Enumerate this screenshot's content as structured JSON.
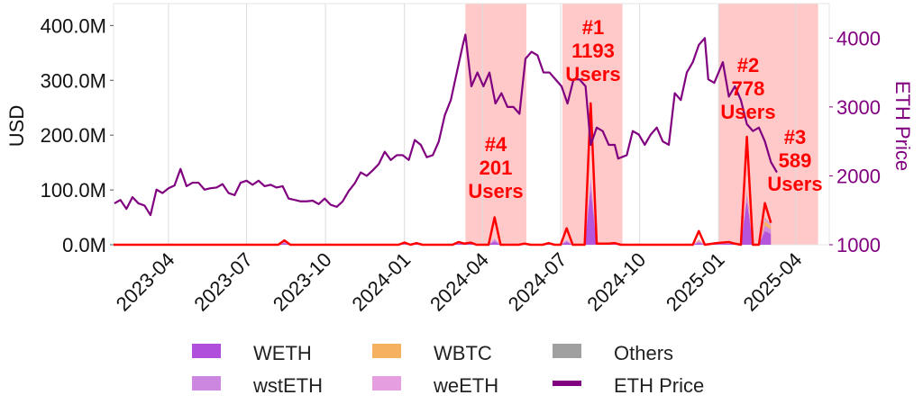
{
  "chart_data": {
    "type": "area",
    "ylabel": "USD",
    "ylabel_right": "ETH Price",
    "ylim": [
      0,
      440000000
    ],
    "ylim_right": [
      1000,
      4500
    ],
    "xlim": [
      "2023-01-27",
      "2025-05-10"
    ],
    "yticks": [
      0,
      100000000,
      200000000,
      300000000,
      400000000
    ],
    "ytick_labels": [
      "0.0M",
      "100.0M",
      "200.0M",
      "300.0M",
      "400.0M"
    ],
    "yticks_right": [
      1000,
      2000,
      3000,
      4000
    ],
    "ytick_labels_right": [
      "1000",
      "2000",
      "3000",
      "4000"
    ],
    "xticks": [
      "2023-04-01",
      "2023-07-01",
      "2023-10-01",
      "2024-01-01",
      "2024-04-01",
      "2024-07-01",
      "2024-10-01",
      "2025-01-01",
      "2025-04-01"
    ],
    "xtick_labels": [
      "2023-04",
      "2023-07",
      "2023-10",
      "2024-01",
      "2024-04",
      "2024-07",
      "2024-10",
      "2025-01",
      "2025-04"
    ],
    "grid": "vertical",
    "legend_placement": "bottom",
    "legend": [
      {
        "name": "WETH",
        "color": "#b04fdc",
        "kind": "area"
      },
      {
        "name": "wstETH",
        "color": "#cc88e0",
        "kind": "area"
      },
      {
        "name": "WBTC",
        "color": "#f5b060",
        "kind": "area"
      },
      {
        "name": "weETH",
        "color": "#e59ee0",
        "kind": "area"
      },
      {
        "name": "Others",
        "color": "#a0a0a0",
        "kind": "area"
      },
      {
        "name": "ETH Price",
        "color": "#800080",
        "kind": "line"
      }
    ],
    "highlight_color": "#ffc9c9",
    "total_line_color": "#ff0000",
    "highlight_spans": [
      {
        "start": "2024-03-12",
        "end": "2024-05-22"
      },
      {
        "start": "2024-07-03",
        "end": "2024-09-11"
      },
      {
        "start": "2025-01-01",
        "end": "2025-04-27"
      }
    ],
    "annotations": [
      {
        "rank": "#1",
        "count": "1193",
        "unit": "Users",
        "date": "2024-08-05"
      },
      {
        "rank": "#2",
        "count": "778",
        "unit": "Users",
        "date": "2025-02-03"
      },
      {
        "rank": "#3",
        "count": "589",
        "unit": "Users",
        "date": "2025-03-10"
      },
      {
        "rank": "#4",
        "count": "201",
        "unit": "Users",
        "date": "2024-04-15"
      }
    ],
    "volume_dates": [
      "2023-01-30",
      "2023-08-07",
      "2023-08-14",
      "2023-08-21",
      "2023-12-25",
      "2024-01-01",
      "2024-01-08",
      "2024-01-15",
      "2024-01-22",
      "2024-02-26",
      "2024-03-04",
      "2024-03-11",
      "2024-03-18",
      "2024-03-25",
      "2024-04-08",
      "2024-04-15",
      "2024-04-22",
      "2024-05-13",
      "2024-05-20",
      "2024-05-27",
      "2024-06-10",
      "2024-06-17",
      "2024-06-24",
      "2024-07-01",
      "2024-07-08",
      "2024-07-15",
      "2024-07-29",
      "2024-08-05",
      "2024-08-12",
      "2024-08-26",
      "2024-09-02",
      "2024-09-09",
      "2024-12-02",
      "2024-12-09",
      "2024-12-16",
      "2024-12-30",
      "2025-01-13",
      "2025-01-20",
      "2025-01-27",
      "2025-02-03",
      "2025-02-10",
      "2025-02-17",
      "2025-02-24",
      "2025-03-03"
    ],
    "total_line": [
      0,
      0,
      8,
      0,
      0,
      4,
      0,
      3,
      0,
      0,
      5,
      2,
      4,
      0,
      0,
      50,
      0,
      0,
      2,
      0,
      0,
      3,
      0,
      0,
      30,
      0,
      0,
      258,
      2,
      2,
      3,
      0,
      0,
      25,
      0,
      3,
      5,
      2,
      0,
      197,
      0,
      0,
      76,
      40
    ],
    "series": [
      {
        "name": "WETH",
        "values": [
          0,
          0,
          3,
          0,
          0,
          1,
          0,
          1,
          0,
          0,
          2,
          1,
          2,
          0,
          0,
          6,
          0,
          0,
          1,
          0,
          0,
          1,
          0,
          0,
          5,
          0,
          0,
          100,
          1,
          1,
          1,
          0,
          0,
          4,
          0,
          1,
          2,
          1,
          0,
          80,
          0,
          0,
          25,
          20
        ]
      },
      {
        "name": "wstETH",
        "values": [
          0,
          0,
          2,
          0,
          0,
          1,
          0,
          1,
          0,
          0,
          1,
          0,
          1,
          0,
          0,
          4,
          0,
          0,
          0,
          0,
          0,
          1,
          0,
          0,
          3,
          0,
          0,
          20,
          0,
          0,
          1,
          0,
          0,
          3,
          0,
          1,
          1,
          0,
          0,
          15,
          0,
          0,
          10,
          8
        ]
      },
      {
        "name": "WBTC",
        "values": [
          0,
          0,
          0,
          0,
          0,
          0,
          0,
          0,
          0,
          0,
          0,
          0,
          0,
          0,
          0,
          0,
          0,
          0,
          0,
          0,
          0,
          0,
          0,
          0,
          0,
          0,
          0,
          0,
          0,
          0,
          0,
          0,
          0,
          2,
          0,
          0,
          0,
          0,
          0,
          5,
          0,
          0,
          8,
          6
        ]
      },
      {
        "name": "weETH",
        "values": [
          0,
          0,
          0,
          0,
          0,
          0,
          0,
          0,
          0,
          0,
          0,
          0,
          0,
          0,
          0,
          1,
          0,
          0,
          0,
          0,
          0,
          0,
          0,
          0,
          1,
          0,
          0,
          5,
          0,
          0,
          0,
          0,
          0,
          1,
          0,
          0,
          0,
          0,
          0,
          2,
          0,
          0,
          4,
          3
        ]
      },
      {
        "name": "Others",
        "values": [
          0,
          0,
          0,
          0,
          0,
          0,
          0,
          0,
          0,
          0,
          0,
          0,
          0,
          0,
          0,
          0,
          0,
          0,
          0,
          0,
          0,
          0,
          0,
          0,
          0,
          0,
          0,
          0,
          0,
          0,
          0,
          0,
          0,
          0,
          0,
          0,
          0,
          0,
          0,
          0,
          0,
          0,
          2,
          1
        ]
      }
    ],
    "volume_unit": "M USD",
    "eth_price": {
      "dates": [
        "2023-01-28",
        "2023-02-04",
        "2023-02-11",
        "2023-02-18",
        "2023-02-25",
        "2023-03-04",
        "2023-03-11",
        "2023-03-18",
        "2023-03-25",
        "2023-04-01",
        "2023-04-08",
        "2023-04-15",
        "2023-04-22",
        "2023-04-29",
        "2023-05-06",
        "2023-05-13",
        "2023-05-20",
        "2023-05-27",
        "2023-06-03",
        "2023-06-10",
        "2023-06-17",
        "2023-06-24",
        "2023-07-01",
        "2023-07-08",
        "2023-07-15",
        "2023-07-22",
        "2023-07-29",
        "2023-08-05",
        "2023-08-12",
        "2023-08-19",
        "2023-08-26",
        "2023-09-02",
        "2023-09-09",
        "2023-09-16",
        "2023-09-23",
        "2023-09-30",
        "2023-10-07",
        "2023-10-14",
        "2023-10-21",
        "2023-10-28",
        "2023-11-04",
        "2023-11-11",
        "2023-11-18",
        "2023-11-25",
        "2023-12-02",
        "2023-12-09",
        "2023-12-16",
        "2023-12-23",
        "2023-12-30",
        "2024-01-06",
        "2024-01-13",
        "2024-01-20",
        "2024-01-27",
        "2024-02-03",
        "2024-02-10",
        "2024-02-17",
        "2024-02-24",
        "2024-03-02",
        "2024-03-09",
        "2024-03-12",
        "2024-03-19",
        "2024-03-26",
        "2024-04-02",
        "2024-04-09",
        "2024-04-16",
        "2024-04-23",
        "2024-04-30",
        "2024-05-07",
        "2024-05-14",
        "2024-05-21",
        "2024-05-28",
        "2024-06-04",
        "2024-06-11",
        "2024-06-18",
        "2024-06-25",
        "2024-07-02",
        "2024-07-09",
        "2024-07-16",
        "2024-07-23",
        "2024-07-30",
        "2024-08-05",
        "2024-08-12",
        "2024-08-19",
        "2024-08-26",
        "2024-09-02",
        "2024-09-06",
        "2024-09-16",
        "2024-09-23",
        "2024-09-30",
        "2024-10-07",
        "2024-10-14",
        "2024-10-21",
        "2024-10-28",
        "2024-11-04",
        "2024-11-11",
        "2024-11-18",
        "2024-11-25",
        "2024-12-02",
        "2024-12-09",
        "2024-12-16",
        "2024-12-20",
        "2024-12-27",
        "2025-01-06",
        "2025-01-13",
        "2025-01-20",
        "2025-01-27",
        "2025-02-03",
        "2025-02-10",
        "2025-02-17",
        "2025-02-24",
        "2025-03-03",
        "2025-03-10"
      ],
      "values": [
        1600,
        1650,
        1520,
        1690,
        1600,
        1570,
        1430,
        1800,
        1750,
        1820,
        1860,
        2100,
        1850,
        1900,
        1900,
        1800,
        1820,
        1830,
        1880,
        1750,
        1720,
        1900,
        1930,
        1870,
        1930,
        1850,
        1870,
        1830,
        1850,
        1670,
        1650,
        1630,
        1630,
        1640,
        1590,
        1670,
        1580,
        1550,
        1630,
        1780,
        1890,
        2050,
        2000,
        2080,
        2170,
        2350,
        2230,
        2300,
        2300,
        2230,
        2520,
        2450,
        2270,
        2300,
        2500,
        2880,
        3100,
        3500,
        3900,
        4050,
        3300,
        3500,
        3300,
        3500,
        3050,
        3200,
        3000,
        3000,
        2900,
        3700,
        3800,
        3750,
        3500,
        3500,
        3400,
        3300,
        3050,
        3400,
        3400,
        3300,
        2450,
        2700,
        2650,
        2450,
        2450,
        2250,
        2300,
        2650,
        2600,
        2450,
        2600,
        2700,
        2500,
        2450,
        3200,
        3100,
        3500,
        3650,
        3900,
        4000,
        3400,
        3350,
        3650,
        3150,
        3300,
        3100,
        2750,
        2650,
        2700,
        2500,
        2200,
        2050
      ]
    }
  }
}
